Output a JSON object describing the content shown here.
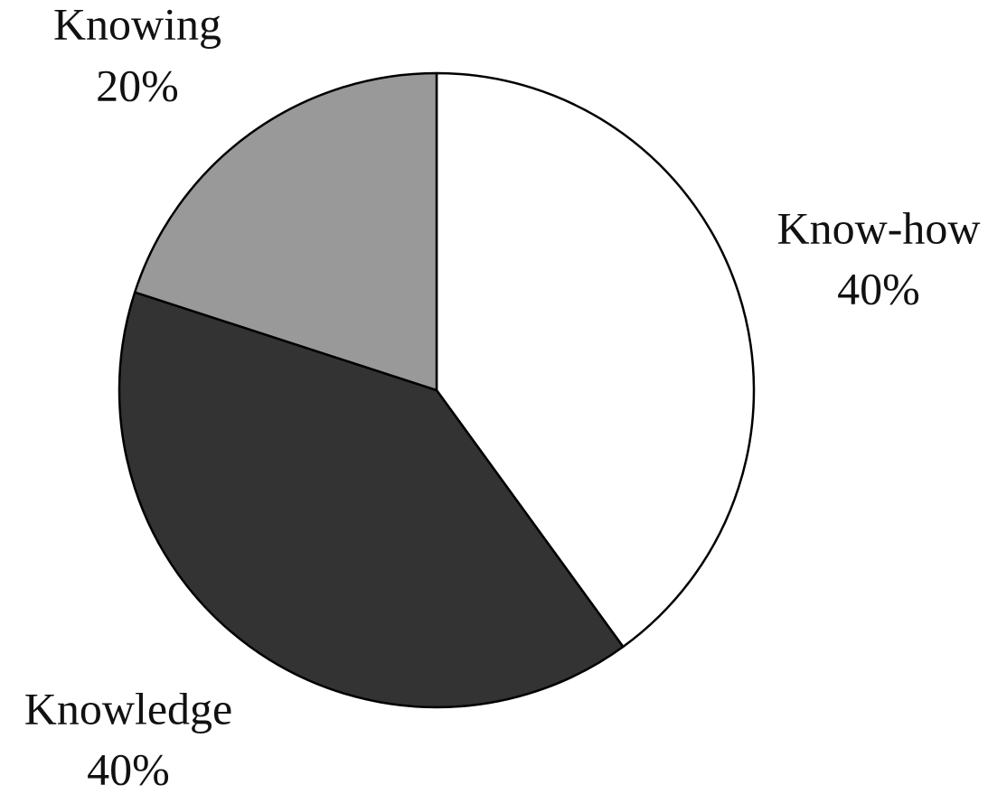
{
  "chart_data": {
    "type": "pie",
    "categories": [
      "Know-how",
      "Knowledge",
      "Knowing"
    ],
    "values": [
      40,
      40,
      20
    ],
    "value_labels": [
      "40%",
      "40%",
      "20%"
    ],
    "colors": [
      "#ffffff",
      "#333333",
      "#999999"
    ]
  }
}
